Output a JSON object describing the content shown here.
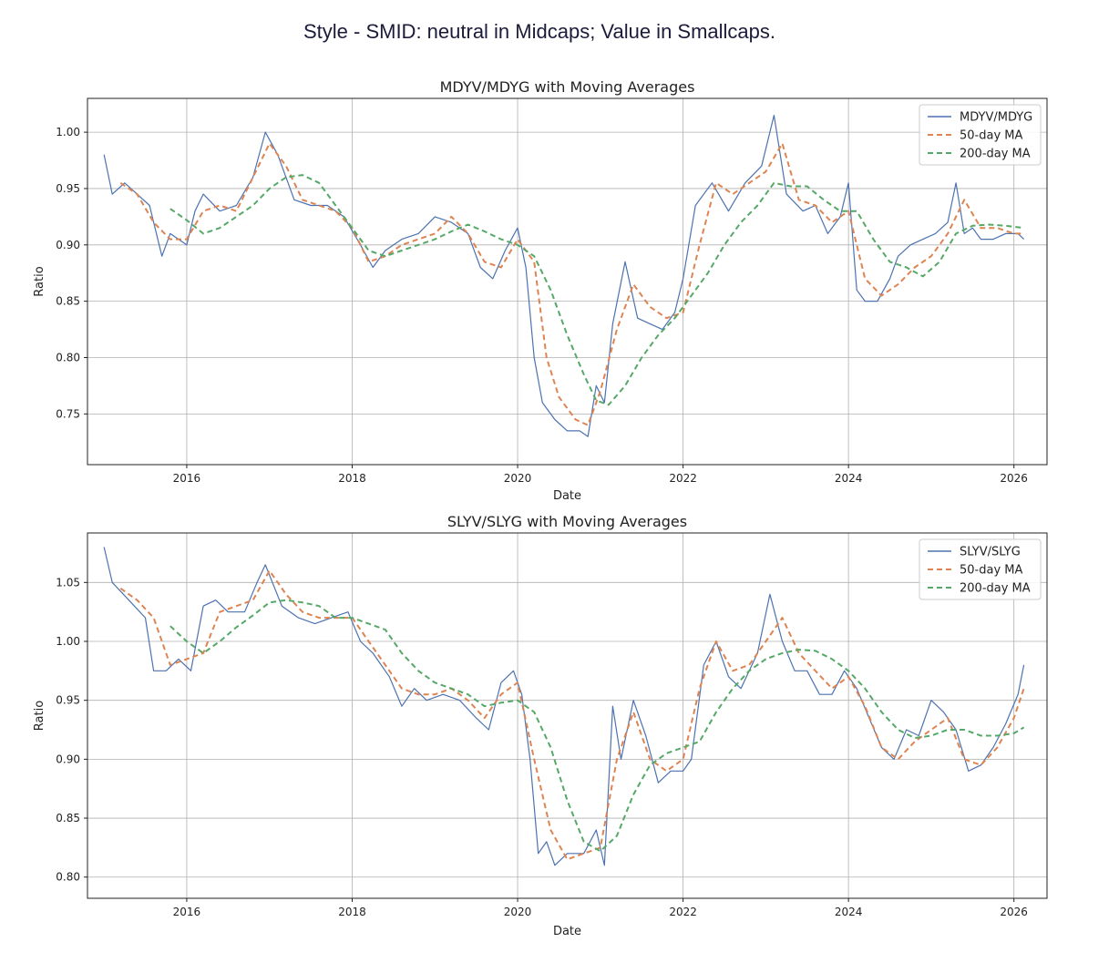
{
  "page": {
    "title": "Style - SMID: neutral in Midcaps; Value in Smallcaps."
  },
  "colors": {
    "ratio": "#4c72b0",
    "ma50": "#dd8452",
    "ma200": "#55a868",
    "grid": "#b0b0b0"
  },
  "chart_data": [
    {
      "type": "line",
      "title": "MDYV/MDYG with Moving Averages",
      "xlabel": "Date",
      "ylabel": "Ratio",
      "xlim": [
        2014.8,
        2026.4
      ],
      "ylim": [
        0.705,
        1.03
      ],
      "xticks": [
        2016,
        2018,
        2020,
        2022,
        2024,
        2026
      ],
      "xtick_labels": [
        "2016",
        "2018",
        "2020",
        "2022",
        "2024",
        "2026"
      ],
      "yticks": [
        0.75,
        0.8,
        0.85,
        0.9,
        0.95,
        1.0
      ],
      "ytick_labels": [
        "0.75",
        "0.80",
        "0.85",
        "0.90",
        "0.95",
        "1.00"
      ],
      "grid": true,
      "legend_position": "top-right",
      "series": [
        {
          "name": "MDYV/MDYG",
          "style": "solid",
          "x": [
            2015.0,
            2015.1,
            2015.25,
            2015.4,
            2015.55,
            2015.7,
            2015.8,
            2015.9,
            2016.0,
            2016.1,
            2016.2,
            2016.4,
            2016.6,
            2016.8,
            2016.95,
            2017.1,
            2017.3,
            2017.5,
            2017.7,
            2017.9,
            2018.1,
            2018.25,
            2018.4,
            2018.6,
            2018.8,
            2019.0,
            2019.2,
            2019.4,
            2019.55,
            2019.7,
            2019.85,
            2020.0,
            2020.1,
            2020.2,
            2020.3,
            2020.45,
            2020.6,
            2020.75,
            2020.85,
            2020.95,
            2021.05,
            2021.15,
            2021.3,
            2021.45,
            2021.6,
            2021.75,
            2021.9,
            2022.0,
            2022.15,
            2022.35,
            2022.55,
            2022.75,
            2022.95,
            2023.1,
            2023.25,
            2023.45,
            2023.6,
            2023.75,
            2023.9,
            2024.0,
            2024.1,
            2024.2,
            2024.35,
            2024.5,
            2024.6,
            2024.75,
            2024.9,
            2025.05,
            2025.2,
            2025.3,
            2025.4,
            2025.5,
            2025.6,
            2025.75,
            2025.9,
            2026.05,
            2026.12
          ],
          "y": [
            0.98,
            0.945,
            0.955,
            0.945,
            0.935,
            0.89,
            0.91,
            0.905,
            0.9,
            0.93,
            0.945,
            0.93,
            0.935,
            0.96,
            1.0,
            0.98,
            0.94,
            0.935,
            0.935,
            0.925,
            0.9,
            0.88,
            0.895,
            0.905,
            0.91,
            0.925,
            0.92,
            0.91,
            0.88,
            0.87,
            0.895,
            0.915,
            0.88,
            0.8,
            0.76,
            0.745,
            0.735,
            0.735,
            0.73,
            0.775,
            0.76,
            0.83,
            0.885,
            0.835,
            0.83,
            0.825,
            0.84,
            0.87,
            0.935,
            0.955,
            0.93,
            0.955,
            0.97,
            1.015,
            0.945,
            0.93,
            0.935,
            0.91,
            0.925,
            0.955,
            0.86,
            0.85,
            0.85,
            0.87,
            0.89,
            0.9,
            0.905,
            0.91,
            0.92,
            0.955,
            0.91,
            0.915,
            0.905,
            0.905,
            0.91,
            0.91,
            0.905
          ]
        },
        {
          "name": "50-day MA",
          "style": "dashed",
          "x": [
            2015.2,
            2015.4,
            2015.6,
            2015.8,
            2016.0,
            2016.2,
            2016.4,
            2016.6,
            2016.8,
            2017.0,
            2017.2,
            2017.4,
            2017.6,
            2017.8,
            2018.0,
            2018.2,
            2018.4,
            2018.6,
            2018.8,
            2019.0,
            2019.2,
            2019.4,
            2019.6,
            2019.8,
            2020.0,
            2020.2,
            2020.35,
            2020.5,
            2020.7,
            2020.85,
            2021.0,
            2021.2,
            2021.4,
            2021.6,
            2021.8,
            2022.0,
            2022.2,
            2022.4,
            2022.6,
            2022.8,
            2023.0,
            2023.2,
            2023.4,
            2023.6,
            2023.8,
            2024.0,
            2024.2,
            2024.4,
            2024.6,
            2024.8,
            2025.0,
            2025.2,
            2025.4,
            2025.6,
            2025.8,
            2026.0,
            2026.12
          ],
          "y": [
            0.955,
            0.945,
            0.92,
            0.905,
            0.905,
            0.93,
            0.935,
            0.93,
            0.96,
            0.99,
            0.97,
            0.94,
            0.935,
            0.93,
            0.915,
            0.885,
            0.89,
            0.9,
            0.905,
            0.91,
            0.925,
            0.91,
            0.885,
            0.88,
            0.905,
            0.885,
            0.8,
            0.765,
            0.745,
            0.74,
            0.77,
            0.825,
            0.865,
            0.845,
            0.835,
            0.84,
            0.9,
            0.955,
            0.945,
            0.955,
            0.965,
            0.99,
            0.94,
            0.935,
            0.92,
            0.93,
            0.87,
            0.855,
            0.865,
            0.88,
            0.89,
            0.91,
            0.94,
            0.915,
            0.915,
            0.91,
            0.91
          ]
        },
        {
          "name": "200-day MA",
          "style": "dashed",
          "x": [
            2015.8,
            2016.0,
            2016.2,
            2016.4,
            2016.6,
            2016.8,
            2017.0,
            2017.2,
            2017.4,
            2017.6,
            2017.8,
            2018.0,
            2018.2,
            2018.4,
            2018.6,
            2018.8,
            2019.0,
            2019.2,
            2019.4,
            2019.6,
            2019.8,
            2020.0,
            2020.2,
            2020.4,
            2020.6,
            2020.8,
            2020.95,
            2021.1,
            2021.3,
            2021.5,
            2021.7,
            2021.9,
            2022.1,
            2022.3,
            2022.5,
            2022.7,
            2022.9,
            2023.1,
            2023.3,
            2023.5,
            2023.7,
            2023.9,
            2024.1,
            2024.3,
            2024.5,
            2024.7,
            2024.9,
            2025.1,
            2025.3,
            2025.5,
            2025.7,
            2025.9,
            2026.12
          ],
          "y": [
            0.932,
            0.922,
            0.91,
            0.915,
            0.925,
            0.935,
            0.95,
            0.96,
            0.962,
            0.955,
            0.935,
            0.915,
            0.895,
            0.89,
            0.895,
            0.9,
            0.905,
            0.912,
            0.918,
            0.912,
            0.905,
            0.9,
            0.89,
            0.86,
            0.82,
            0.785,
            0.762,
            0.758,
            0.775,
            0.8,
            0.82,
            0.835,
            0.855,
            0.875,
            0.9,
            0.92,
            0.935,
            0.955,
            0.952,
            0.952,
            0.94,
            0.93,
            0.93,
            0.905,
            0.885,
            0.88,
            0.872,
            0.885,
            0.91,
            0.917,
            0.918,
            0.917,
            0.915
          ]
        }
      ]
    },
    {
      "type": "line",
      "title": "SLYV/SLYG with Moving Averages",
      "xlabel": "Date",
      "ylabel": "Ratio",
      "xlim": [
        2014.8,
        2026.4
      ],
      "ylim": [
        0.782,
        1.092
      ],
      "xticks": [
        2016,
        2018,
        2020,
        2022,
        2024,
        2026
      ],
      "xtick_labels": [
        "2016",
        "2018",
        "2020",
        "2022",
        "2024",
        "2026"
      ],
      "yticks": [
        0.8,
        0.85,
        0.9,
        0.95,
        1.0,
        1.05
      ],
      "ytick_labels": [
        "0.80",
        "0.85",
        "0.90",
        "0.95",
        "1.00",
        "1.05"
      ],
      "grid": true,
      "legend_position": "top-right",
      "series": [
        {
          "name": "SLYV/SLYG",
          "style": "solid",
          "x": [
            2015.0,
            2015.1,
            2015.3,
            2015.5,
            2015.6,
            2015.75,
            2015.9,
            2016.05,
            2016.2,
            2016.35,
            2016.5,
            2016.7,
            2016.85,
            2016.95,
            2017.15,
            2017.35,
            2017.55,
            2017.75,
            2017.95,
            2018.1,
            2018.25,
            2018.45,
            2018.6,
            2018.75,
            2018.9,
            2019.1,
            2019.3,
            2019.5,
            2019.65,
            2019.8,
            2019.95,
            2020.05,
            2020.15,
            2020.25,
            2020.35,
            2020.45,
            2020.6,
            2020.8,
            2020.95,
            2021.05,
            2021.15,
            2021.25,
            2021.4,
            2021.55,
            2021.7,
            2021.85,
            2022.0,
            2022.1,
            2022.25,
            2022.4,
            2022.55,
            2022.7,
            2022.9,
            2023.05,
            2023.2,
            2023.35,
            2023.5,
            2023.65,
            2023.8,
            2023.95,
            2024.1,
            2024.25,
            2024.4,
            2024.55,
            2024.7,
            2024.85,
            2025.0,
            2025.15,
            2025.3,
            2025.45,
            2025.6,
            2025.75,
            2025.9,
            2026.05,
            2026.12
          ],
          "y": [
            1.08,
            1.05,
            1.035,
            1.02,
            0.975,
            0.975,
            0.985,
            0.975,
            1.03,
            1.035,
            1.025,
            1.025,
            1.05,
            1.065,
            1.03,
            1.02,
            1.015,
            1.02,
            1.025,
            1.0,
            0.99,
            0.97,
            0.945,
            0.96,
            0.95,
            0.955,
            0.95,
            0.935,
            0.925,
            0.965,
            0.975,
            0.955,
            0.9,
            0.82,
            0.83,
            0.81,
            0.82,
            0.82,
            0.84,
            0.81,
            0.945,
            0.9,
            0.95,
            0.92,
            0.88,
            0.89,
            0.89,
            0.9,
            0.98,
            1.0,
            0.97,
            0.96,
            0.99,
            1.04,
            1.0,
            0.975,
            0.975,
            0.955,
            0.955,
            0.975,
            0.96,
            0.935,
            0.91,
            0.9,
            0.925,
            0.92,
            0.95,
            0.94,
            0.925,
            0.89,
            0.895,
            0.91,
            0.93,
            0.955,
            0.98
          ]
        },
        {
          "name": "50-day MA",
          "style": "dashed",
          "x": [
            2015.2,
            2015.4,
            2015.6,
            2015.8,
            2016.0,
            2016.2,
            2016.4,
            2016.6,
            2016.8,
            2017.0,
            2017.2,
            2017.4,
            2017.6,
            2017.8,
            2018.0,
            2018.2,
            2018.4,
            2018.6,
            2018.8,
            2019.0,
            2019.2,
            2019.4,
            2019.6,
            2019.8,
            2020.0,
            2020.2,
            2020.4,
            2020.6,
            2020.8,
            2021.0,
            2021.2,
            2021.4,
            2021.6,
            2021.8,
            2022.0,
            2022.2,
            2022.4,
            2022.6,
            2022.8,
            2023.0,
            2023.2,
            2023.4,
            2023.6,
            2023.8,
            2024.0,
            2024.2,
            2024.4,
            2024.6,
            2024.8,
            2025.0,
            2025.2,
            2025.4,
            2025.6,
            2025.8,
            2026.0,
            2026.12
          ],
          "y": [
            1.045,
            1.035,
            1.02,
            0.98,
            0.985,
            0.99,
            1.025,
            1.03,
            1.035,
            1.06,
            1.04,
            1.025,
            1.02,
            1.02,
            1.02,
            1.0,
            0.98,
            0.96,
            0.955,
            0.955,
            0.96,
            0.95,
            0.935,
            0.955,
            0.965,
            0.9,
            0.84,
            0.815,
            0.82,
            0.825,
            0.9,
            0.94,
            0.9,
            0.89,
            0.9,
            0.96,
            1.0,
            0.975,
            0.98,
            1.0,
            1.02,
            0.99,
            0.975,
            0.96,
            0.97,
            0.945,
            0.91,
            0.9,
            0.915,
            0.925,
            0.935,
            0.9,
            0.895,
            0.91,
            0.935,
            0.96
          ]
        },
        {
          "name": "200-day MA",
          "style": "dashed",
          "x": [
            2015.8,
            2016.0,
            2016.2,
            2016.4,
            2016.6,
            2016.8,
            2017.0,
            2017.2,
            2017.4,
            2017.6,
            2017.8,
            2018.0,
            2018.2,
            2018.4,
            2018.6,
            2018.8,
            2019.0,
            2019.2,
            2019.4,
            2019.6,
            2019.8,
            2020.0,
            2020.2,
            2020.4,
            2020.6,
            2020.8,
            2021.0,
            2021.2,
            2021.4,
            2021.6,
            2021.8,
            2022.0,
            2022.2,
            2022.4,
            2022.6,
            2022.8,
            2023.0,
            2023.2,
            2023.4,
            2023.6,
            2023.8,
            2024.0,
            2024.2,
            2024.4,
            2024.6,
            2024.8,
            2025.0,
            2025.2,
            2025.4,
            2025.6,
            2025.8,
            2026.0,
            2026.12
          ],
          "y": [
            1.013,
            1.0,
            0.99,
            1.0,
            1.012,
            1.022,
            1.033,
            1.035,
            1.033,
            1.03,
            1.02,
            1.02,
            1.015,
            1.01,
            0.99,
            0.975,
            0.965,
            0.96,
            0.955,
            0.945,
            0.948,
            0.95,
            0.94,
            0.91,
            0.865,
            0.83,
            0.822,
            0.835,
            0.87,
            0.895,
            0.905,
            0.91,
            0.915,
            0.94,
            0.96,
            0.975,
            0.985,
            0.99,
            0.993,
            0.992,
            0.985,
            0.975,
            0.96,
            0.94,
            0.925,
            0.918,
            0.92,
            0.925,
            0.925,
            0.92,
            0.92,
            0.922,
            0.927
          ]
        }
      ]
    }
  ]
}
